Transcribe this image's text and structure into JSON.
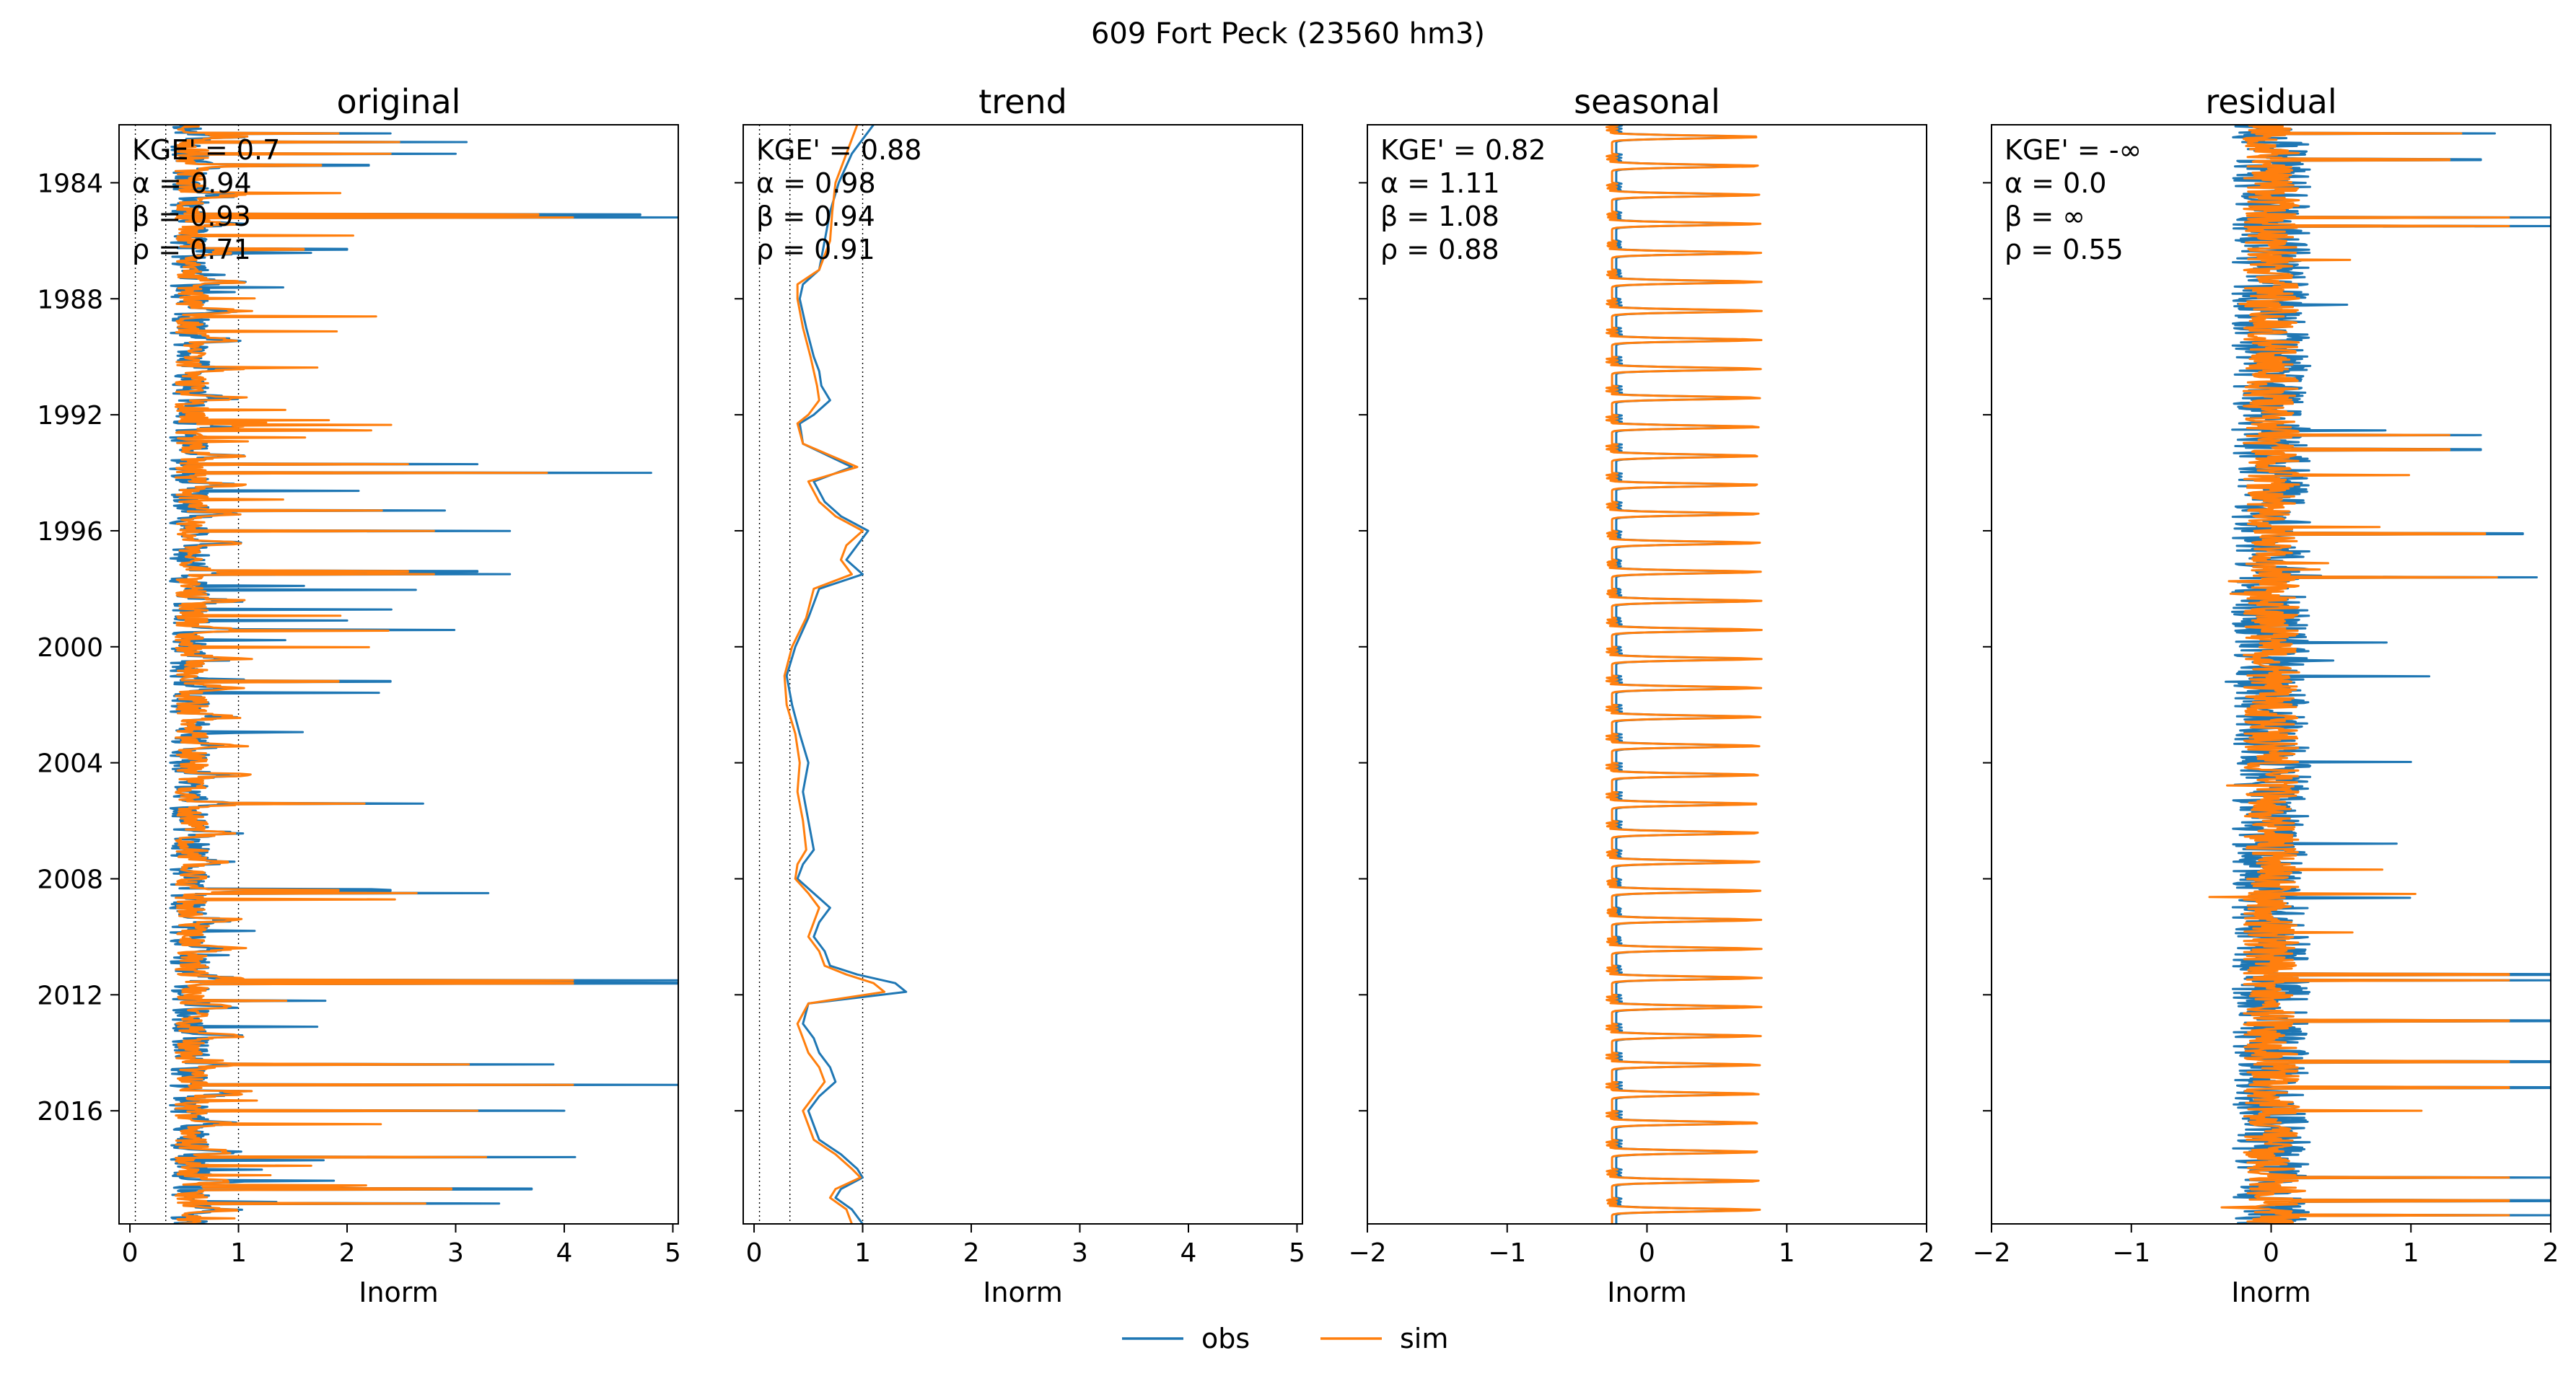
{
  "figure": {
    "suptitle": "609  Fort Peck (23560 hm3)",
    "legend": {
      "placement": "bottom-center",
      "entries": [
        {
          "name": "obs",
          "color": "#1f77b4"
        },
        {
          "name": "sim",
          "color": "#ff7f0e"
        }
      ]
    }
  },
  "colors": {
    "obs": "#1f77b4",
    "sim": "#ff7f0e"
  },
  "chart_data": [
    {
      "type": "line",
      "title": "original",
      "xlabel": "Inorm",
      "xlim": [
        -0.1,
        5.05
      ],
      "xticks": [
        0,
        1,
        2,
        3,
        4,
        5
      ],
      "xtick_labels": [
        "0",
        "1",
        "2",
        "3",
        "4",
        "5"
      ],
      "ylim": [
        1982.0,
        2019.9
      ],
      "yticks": [
        1984,
        1988,
        1992,
        1996,
        2000,
        2004,
        2008,
        2012,
        2016
      ],
      "ytick_labels": [
        "1984",
        "1988",
        "1992",
        "1996",
        "2000",
        "2004",
        "2008",
        "2012",
        "2016"
      ],
      "show_yticklabels": true,
      "reference_lines": [
        0.05,
        0.33,
        1.0
      ],
      "metrics": [
        "KGE' = 0.7",
        "α = 0.94",
        "β = 0.93",
        "ρ = 0.71"
      ],
      "series": [
        {
          "name": "obs",
          "base": 0.55,
          "noise": 0.18,
          "peak": 0.35,
          "spike_rate": 0.55,
          "spike_scale": 1.3,
          "seed": 11
        },
        {
          "name": "sim",
          "base": 0.57,
          "noise": 0.15,
          "peak": 0.42,
          "spike_rate": 0.45,
          "spike_scale": 1.1,
          "seed": 23
        }
      ],
      "peaks": [
        [
          1982.3,
          2.4
        ],
        [
          1982.6,
          3.1
        ],
        [
          1983.0,
          3.0
        ],
        [
          1983.4,
          2.2
        ],
        [
          1985.1,
          4.7
        ],
        [
          1985.2,
          5.1
        ],
        [
          1986.3,
          2.0
        ],
        [
          1993.7,
          3.2
        ],
        [
          1994.0,
          4.8
        ],
        [
          1995.3,
          2.9
        ],
        [
          1996.0,
          3.5
        ],
        [
          1997.5,
          3.5
        ],
        [
          1997.4,
          3.2
        ],
        [
          2001.2,
          2.4
        ],
        [
          2005.4,
          2.7
        ],
        [
          2008.5,
          3.3
        ],
        [
          2008.4,
          2.4
        ],
        [
          2011.5,
          5.1
        ],
        [
          2011.6,
          5.1
        ],
        [
          2012.2,
          1.8
        ],
        [
          2014.4,
          3.9
        ],
        [
          2015.1,
          5.1
        ],
        [
          2016.0,
          4.0
        ],
        [
          2017.6,
          4.1
        ],
        [
          2018.7,
          3.7
        ],
        [
          2019.2,
          3.4
        ]
      ],
      "trend": null
    },
    {
      "type": "line",
      "title": "trend",
      "xlabel": "Inorm",
      "xlim": [
        -0.1,
        5.05
      ],
      "xticks": [
        0,
        1,
        2,
        3,
        4,
        5
      ],
      "xtick_labels": [
        "0",
        "1",
        "2",
        "3",
        "4",
        "5"
      ],
      "ylim": [
        1982.0,
        2019.9
      ],
      "yticks": [
        1984,
        1988,
        1992,
        1996,
        2000,
        2004,
        2008,
        2012,
        2016
      ],
      "ytick_labels": [
        "1984",
        "1988",
        "1992",
        "1996",
        "2000",
        "2004",
        "2008",
        "2012",
        "2016"
      ],
      "show_yticklabels": false,
      "reference_lines": [
        0.05,
        0.33,
        1.0
      ],
      "metrics": [
        "KGE' = 0.88",
        "α = 0.98",
        "β = 0.94",
        "ρ = 0.91"
      ],
      "trend": {
        "t": [
          1982.0,
          1983.0,
          1984.0,
          1985.0,
          1986.0,
          1987.0,
          1987.5,
          1988.0,
          1989.0,
          1990.0,
          1990.5,
          1991.0,
          1991.5,
          1992.0,
          1992.3,
          1993.0,
          1993.8,
          1994.3,
          1995.0,
          1995.5,
          1996.0,
          1996.5,
          1997.0,
          1997.5,
          1998.0,
          1999.0,
          2000.0,
          2001.0,
          2002.0,
          2003.0,
          2004.0,
          2005.0,
          2006.0,
          2007.0,
          2007.5,
          2008.0,
          2008.5,
          2009.0,
          2009.5,
          2010.0,
          2010.5,
          2011.0,
          2011.3,
          2011.6,
          2011.9,
          2012.3,
          2013.0,
          2013.5,
          2014.0,
          2014.5,
          2015.0,
          2015.5,
          2016.0,
          2016.5,
          2017.0,
          2017.5,
          2018.0,
          2018.3,
          2018.7,
          2019.0,
          2019.4,
          2019.9
        ],
        "obs": [
          1.1,
          0.9,
          0.78,
          0.7,
          0.65,
          0.6,
          0.45,
          0.42,
          0.48,
          0.55,
          0.6,
          0.62,
          0.7,
          0.55,
          0.42,
          0.45,
          0.9,
          0.55,
          0.65,
          0.8,
          1.05,
          0.95,
          0.85,
          1.0,
          0.6,
          0.5,
          0.38,
          0.3,
          0.35,
          0.42,
          0.5,
          0.45,
          0.5,
          0.55,
          0.45,
          0.4,
          0.55,
          0.7,
          0.6,
          0.55,
          0.65,
          0.7,
          0.95,
          1.3,
          1.4,
          0.5,
          0.45,
          0.55,
          0.6,
          0.7,
          0.75,
          0.6,
          0.5,
          0.55,
          0.6,
          0.8,
          0.95,
          1.0,
          0.8,
          0.75,
          0.9,
          1.0
        ],
        "sim": [
          0.95,
          0.85,
          0.75,
          0.72,
          0.7,
          0.6,
          0.4,
          0.4,
          0.45,
          0.52,
          0.55,
          0.58,
          0.6,
          0.5,
          0.4,
          0.45,
          0.95,
          0.5,
          0.6,
          0.75,
          1.0,
          0.85,
          0.8,
          0.9,
          0.55,
          0.48,
          0.35,
          0.28,
          0.3,
          0.38,
          0.42,
          0.4,
          0.45,
          0.48,
          0.4,
          0.38,
          0.5,
          0.6,
          0.55,
          0.5,
          0.6,
          0.65,
          0.85,
          1.1,
          1.2,
          0.5,
          0.4,
          0.45,
          0.5,
          0.6,
          0.65,
          0.55,
          0.45,
          0.5,
          0.55,
          0.75,
          0.9,
          0.98,
          0.75,
          0.7,
          0.85,
          0.9
        ]
      },
      "series": [
        {
          "name": "obs"
        },
        {
          "name": "sim"
        }
      ]
    },
    {
      "type": "line",
      "title": "seasonal",
      "xlabel": "Inorm",
      "xlim": [
        -2,
        2
      ],
      "xticks": [
        -2,
        -1,
        0,
        1,
        2
      ],
      "xtick_labels": [
        "−2",
        "−1",
        "0",
        "1",
        "2"
      ],
      "ylim": [
        1982.0,
        2019.9
      ],
      "yticks": [
        1984,
        1988,
        1992,
        1996,
        2000,
        2004,
        2008,
        2012,
        2016
      ],
      "ytick_labels": [
        "1984",
        "1988",
        "1992",
        "1996",
        "2000",
        "2004",
        "2008",
        "2012",
        "2016"
      ],
      "show_yticklabels": false,
      "reference_lines": [],
      "metrics": [
        "KGE' = 0.82",
        "α = 1.11",
        "β = 1.08",
        "ρ = 0.88"
      ],
      "seasonal": {
        "obs": {
          "min": -0.22,
          "max": 0.75
        },
        "sim": {
          "min": -0.25,
          "max": 0.82
        }
      },
      "series": [
        {
          "name": "obs"
        },
        {
          "name": "sim"
        }
      ],
      "trend": null
    },
    {
      "type": "line",
      "title": "residual",
      "xlabel": "Inorm",
      "xlim": [
        -2,
        2
      ],
      "xticks": [
        -2,
        -1,
        0,
        1,
        2
      ],
      "xtick_labels": [
        "−2",
        "−1",
        "0",
        "1",
        "2"
      ],
      "ylim": [
        1982.0,
        2019.9
      ],
      "yticks": [
        1984,
        1988,
        1992,
        1996,
        2000,
        2004,
        2008,
        2012,
        2016
      ],
      "ytick_labels": [
        "1984",
        "1988",
        "1992",
        "1996",
        "2000",
        "2004",
        "2008",
        "2012",
        "2016"
      ],
      "show_yticklabels": false,
      "reference_lines": [],
      "metrics": [
        "KGE' = -∞",
        "α = 0.0",
        "β = ∞",
        "ρ = 0.55"
      ],
      "residual": {
        "obs": {
          "noise": 0.28,
          "spike_rate": 0.35,
          "spike_scale": 1.1,
          "seed": 37
        },
        "sim": {
          "noise": 0.2,
          "spike_rate": 0.3,
          "spike_scale": 0.95,
          "seed": 53
        }
      },
      "peaks": [
        [
          1982.3,
          1.6
        ],
        [
          1983.2,
          1.5
        ],
        [
          1985.2,
          2.0
        ],
        [
          1985.5,
          2.0
        ],
        [
          1992.7,
          1.5
        ],
        [
          1993.2,
          1.5
        ],
        [
          1996.1,
          1.8
        ],
        [
          1997.6,
          1.9
        ],
        [
          2011.3,
          2.0
        ],
        [
          2011.5,
          2.0
        ],
        [
          2012.9,
          2.0
        ],
        [
          2014.3,
          2.0
        ],
        [
          2015.2,
          2.0
        ],
        [
          2018.3,
          2.0
        ],
        [
          2019.1,
          2.0
        ],
        [
          2019.6,
          2.0
        ]
      ],
      "series": [
        {
          "name": "obs"
        },
        {
          "name": "sim"
        }
      ],
      "trend": null
    }
  ]
}
